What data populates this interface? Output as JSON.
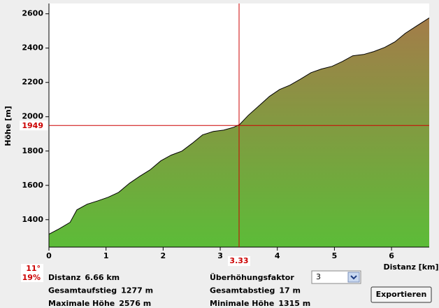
{
  "chart_data": {
    "type": "area",
    "x": [
      0,
      0.18,
      0.37,
      0.49,
      0.67,
      0.86,
      1.04,
      1.22,
      1.41,
      1.59,
      1.77,
      1.96,
      2.14,
      2.33,
      2.51,
      2.69,
      2.88,
      3.06,
      3.24,
      3.34,
      3.49,
      3.67,
      3.86,
      4.04,
      4.22,
      4.41,
      4.59,
      4.77,
      4.96,
      5.14,
      5.32,
      5.51,
      5.69,
      5.88,
      6.06,
      6.24,
      6.43,
      6.66
    ],
    "values": [
      1315,
      1347,
      1384,
      1457,
      1490,
      1510,
      1531,
      1559,
      1612,
      1653,
      1690,
      1743,
      1776,
      1800,
      1845,
      1894,
      1914,
      1922,
      1939,
      1955,
      2008,
      2061,
      2118,
      2159,
      2184,
      2220,
      2257,
      2278,
      2294,
      2322,
      2355,
      2363,
      2380,
      2404,
      2437,
      2486,
      2527,
      2576
    ],
    "xlim": [
      0,
      6.66
    ],
    "ylim": [
      1240,
      2660
    ],
    "xticks": [
      0,
      1,
      2,
      3,
      4,
      5,
      6
    ],
    "yticks": [
      1400,
      1600,
      1800,
      2000,
      2200,
      2400,
      2600
    ],
    "ylabel": "Höhe [m]",
    "xlabel": "Distanz [km]",
    "cursor": {
      "x": 3.33,
      "y": 1949
    },
    "color_top": "#a8784a",
    "color_bottom": "#5cbc38",
    "line_color": "#000000",
    "cursor_color": "#cc0000"
  },
  "slope": {
    "degrees": "11°",
    "percent": "19%"
  },
  "stats_left": [
    {
      "label": "Distanz",
      "value": "6.66 km"
    },
    {
      "label": "Gesamtaufstieg",
      "value": "1277 m"
    },
    {
      "label": "Maximale Höhe",
      "value": "2576 m"
    }
  ],
  "stats_right": [
    {
      "label": "Gesamtabstieg",
      "value": "17 m"
    },
    {
      "label": "Minimale Höhe",
      "value": "1315 m"
    }
  ],
  "controls": {
    "factor_label": "Überhöhungsfaktor",
    "factor_value": "3",
    "export": "Exportieren"
  }
}
